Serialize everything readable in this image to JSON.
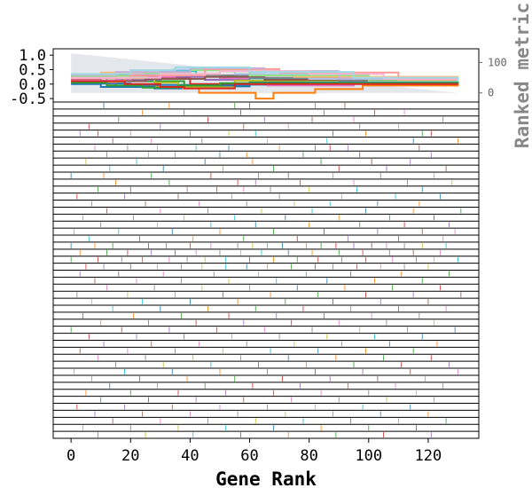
{
  "chart_data": {
    "type": "line",
    "title": "",
    "xlabel": "Gene Rank",
    "ylabel": "",
    "right_ylabel": "Ranked metric",
    "xlim": [
      -6,
      137
    ],
    "x_ticks": [
      0,
      20,
      40,
      60,
      80,
      100,
      120
    ],
    "enrichment_panel": {
      "ylim": [
        -0.62,
        1.22
      ],
      "y_ticks": [
        1.0,
        0.5,
        0.0,
        -0.5
      ],
      "y_tick_labels": [
        "1.0",
        "0.5",
        "0.0",
        "-0.5"
      ],
      "right_ylim": [
        -30,
        145
      ],
      "right_ticks": [
        0,
        100
      ],
      "right_tick_labels": [
        "0",
        "100"
      ],
      "ranked_metric": {
        "x": [
          0,
          130
        ],
        "values": [
          130,
          0
        ],
        "color": "#d8dde4"
      },
      "series": [
        {
          "color": "#ff7f0e",
          "x": [
            0,
            15,
            30,
            43,
            62,
            68,
            82,
            98,
            130
          ],
          "values": [
            0.02,
            -0.08,
            -0.15,
            -0.3,
            -0.5,
            -0.3,
            -0.17,
            -0.05,
            0.0
          ]
        },
        {
          "color": "#1f77b4",
          "x": [
            0,
            20,
            40,
            60,
            80,
            100,
            130
          ],
          "values": [
            0.02,
            -0.03,
            -0.08,
            -0.02,
            0.05,
            0.02,
            0.0
          ]
        },
        {
          "color": "#2ca02c",
          "x": [
            0,
            12,
            25,
            38,
            60,
            90,
            130
          ],
          "values": [
            0.1,
            0.2,
            0.1,
            -0.05,
            0.1,
            0.05,
            0.0
          ]
        },
        {
          "color": "#d62728",
          "x": [
            0,
            10,
            27,
            40,
            70,
            100,
            130
          ],
          "values": [
            0.15,
            0.3,
            0.2,
            0.0,
            0.2,
            0.1,
            0.0
          ]
        },
        {
          "color": "#9467bd",
          "x": [
            0,
            15,
            30,
            45,
            60,
            85,
            130
          ],
          "values": [
            0.05,
            0.15,
            0.25,
            0.15,
            0.0,
            0.05,
            0.0
          ]
        },
        {
          "color": "#e377c2",
          "x": [
            0,
            20,
            35,
            50,
            66,
            95,
            130
          ],
          "values": [
            0.12,
            0.25,
            0.32,
            0.2,
            -0.05,
            0.08,
            0.0
          ]
        },
        {
          "color": "#17becf",
          "x": [
            0,
            12,
            30,
            42,
            60,
            80,
            130
          ],
          "values": [
            0.2,
            0.35,
            0.45,
            0.3,
            0.2,
            0.1,
            0.0
          ]
        },
        {
          "color": "#bcbd22",
          "x": [
            0,
            18,
            28,
            36,
            55,
            90,
            130
          ],
          "values": [
            0.08,
            0.2,
            0.05,
            -0.1,
            0.12,
            0.06,
            0.0
          ]
        },
        {
          "color": "#8c564b",
          "x": [
            0,
            25,
            45,
            65,
            100,
            130
          ],
          "values": [
            0.1,
            0.18,
            0.25,
            0.15,
            0.05,
            0.0
          ]
        },
        {
          "color": "#7f7f7f",
          "x": [
            0,
            15,
            40,
            60,
            90,
            130
          ],
          "values": [
            0.25,
            0.4,
            0.3,
            0.22,
            0.12,
            0.0
          ]
        },
        {
          "color": "#aec7e8",
          "x": [
            0,
            20,
            34,
            55,
            80,
            130
          ],
          "values": [
            0.2,
            0.35,
            0.5,
            0.35,
            0.18,
            0.0
          ]
        },
        {
          "color": "#ffbb78",
          "x": [
            0,
            10,
            30,
            50,
            75,
            130
          ],
          "values": [
            0.3,
            0.4,
            0.35,
            0.45,
            0.25,
            0.0
          ]
        },
        {
          "color": "#98df8a",
          "x": [
            0,
            25,
            40,
            60,
            100,
            130
          ],
          "values": [
            0.28,
            0.38,
            0.48,
            0.3,
            0.1,
            0.0
          ]
        },
        {
          "color": "#ff9896",
          "x": [
            0,
            20,
            45,
            70,
            110,
            130
          ],
          "values": [
            0.2,
            0.3,
            0.52,
            0.4,
            0.15,
            0.0
          ]
        },
        {
          "color": "#c5b0d5",
          "x": [
            0,
            15,
            40,
            65,
            90,
            130
          ],
          "values": [
            0.32,
            0.42,
            0.55,
            0.45,
            0.2,
            0.0
          ]
        },
        {
          "color": "#f7b6d2",
          "x": [
            0,
            30,
            50,
            80,
            105,
            130
          ],
          "values": [
            0.22,
            0.35,
            0.45,
            0.35,
            0.18,
            0.0
          ]
        },
        {
          "color": "#9edae5",
          "x": [
            0,
            20,
            35,
            60,
            95,
            130
          ],
          "values": [
            0.35,
            0.48,
            0.58,
            0.42,
            0.22,
            0.0
          ]
        },
        {
          "color": "#1f77b4",
          "x": [
            0,
            10,
            28,
            37,
            60,
            130
          ],
          "values": [
            0.0,
            -0.1,
            -0.15,
            -0.05,
            0.05,
            0.0
          ]
        },
        {
          "color": "#2ca02c",
          "x": [
            0,
            12,
            24,
            36,
            50,
            130
          ],
          "values": [
            0.05,
            -0.05,
            -0.12,
            -0.05,
            0.03,
            0.0
          ]
        },
        {
          "color": "#d62728",
          "x": [
            0,
            18,
            30,
            38,
            55,
            130
          ],
          "values": [
            0.1,
            0.0,
            -0.1,
            -0.15,
            0.0,
            0.0
          ]
        }
      ]
    },
    "hit_panel": {
      "rows": 48,
      "row_hits": [
        [
          11,
          33,
          55,
          60,
          82,
          92
        ],
        [
          24,
          38,
          57,
          85,
          102,
          112
        ],
        [
          16,
          46,
          65,
          81,
          95,
          125
        ],
        [
          6,
          30,
          58,
          73,
          97,
          110
        ],
        [
          3,
          9,
          20,
          40,
          53,
          62,
          88,
          99,
          118,
          121
        ],
        [
          14,
          27,
          44,
          66,
          86,
          115,
          130
        ],
        [
          8,
          19,
          29,
          42,
          53,
          70,
          82,
          87,
          93,
          117
        ],
        [
          12,
          26,
          35,
          50,
          59,
          78,
          97,
          121
        ],
        [
          5,
          22,
          45,
          61,
          84,
          101,
          114
        ],
        [
          13,
          31,
          51,
          68,
          90,
          106,
          126
        ],
        [
          0,
          11,
          27,
          47,
          63,
          73,
          88,
          104,
          122
        ],
        [
          15,
          33,
          56,
          62,
          77,
          95,
          113,
          128
        ],
        [
          9,
          20,
          39,
          49,
          58,
          67,
          80,
          96,
          118
        ],
        [
          2,
          18,
          36,
          54,
          70,
          91,
          109,
          124
        ],
        [
          7,
          25,
          43,
          59,
          75,
          87,
          103,
          117
        ],
        [
          12,
          30,
          46,
          64,
          81,
          99,
          115,
          131
        ],
        [
          4,
          21,
          38,
          55,
          72,
          90,
          107,
          122
        ],
        [
          10,
          29,
          47,
          62,
          80,
          97,
          112,
          127
        ],
        [
          1,
          16,
          34,
          50,
          68,
          85,
          103,
          118,
          129
        ],
        [
          6,
          23,
          41,
          58,
          76,
          93,
          110,
          125
        ],
        [
          0,
          8,
          14,
          26,
          32,
          40,
          47,
          56,
          61,
          66,
          71,
          79,
          84,
          89,
          95,
          101,
          106,
          112,
          118,
          126
        ],
        [
          3,
          12,
          19,
          27,
          35,
          42,
          50,
          57,
          64,
          73,
          81,
          90,
          98,
          107,
          115,
          124
        ],
        [
          0,
          9,
          17,
          24,
          33,
          39,
          45,
          52,
          60,
          68,
          76,
          83,
          91,
          99,
          108,
          116,
          122,
          130
        ],
        [
          5,
          11,
          20,
          29,
          37,
          44,
          52,
          59,
          66,
          74,
          82,
          88,
          96,
          104,
          112,
          120
        ],
        [
          3,
          16,
          31,
          48,
          63,
          79,
          94,
          111,
          127
        ],
        [
          8,
          22,
          37,
          53,
          69,
          86,
          102,
          118
        ],
        [
          12,
          28,
          44,
          60,
          76,
          92,
          108,
          124
        ],
        [
          2,
          19,
          35,
          51,
          67,
          83,
          99,
          115,
          131
        ],
        [
          7,
          24,
          40,
          56,
          72,
          88,
          104,
          120
        ],
        [
          14,
          30,
          46,
          62,
          78,
          94,
          110,
          126
        ],
        [
          4,
          21,
          37,
          53,
          69,
          85,
          101,
          117
        ],
        [
          10,
          26,
          42,
          58,
          74,
          90,
          106,
          122
        ],
        [
          0,
          17,
          33,
          49,
          65,
          81,
          97,
          113,
          129
        ],
        [
          6,
          22,
          38,
          54,
          70,
          86,
          102,
          118
        ],
        [
          11,
          27,
          43,
          59,
          75,
          91,
          107,
          123
        ],
        [
          3,
          19,
          35,
          51,
          67,
          83,
          99,
          115
        ],
        [
          9,
          25,
          41,
          57,
          73,
          89,
          105,
          121
        ],
        [
          15,
          31,
          47,
          63,
          79,
          95,
          111,
          127
        ],
        [
          1,
          18,
          34,
          50,
          66,
          82,
          98,
          114,
          130
        ],
        [
          7,
          23,
          39,
          55,
          71,
          87,
          103,
          119
        ],
        [
          13,
          29,
          45,
          61,
          77,
          93,
          109,
          125
        ],
        [
          5,
          20,
          36,
          52,
          68,
          84,
          100,
          116
        ],
        [
          10,
          26,
          42,
          58,
          74,
          90,
          106,
          122
        ],
        [
          2,
          18,
          34,
          50,
          66,
          82,
          98,
          114
        ],
        [
          8,
          24,
          40,
          56,
          72,
          88,
          104,
          120
        ],
        [
          14,
          30,
          46,
          62,
          78,
          94,
          110,
          126
        ],
        [
          4,
          20,
          36,
          52,
          68,
          84,
          100,
          116
        ],
        [
          9,
          25,
          41,
          57,
          73,
          89,
          105,
          121
        ]
      ]
    }
  }
}
